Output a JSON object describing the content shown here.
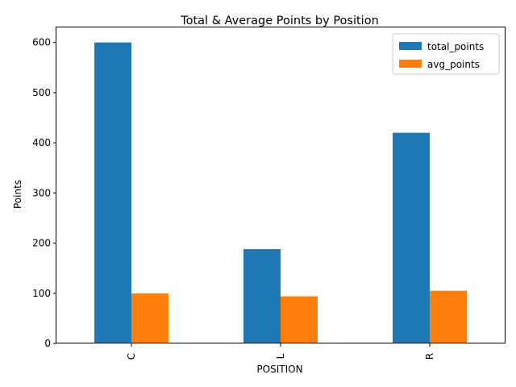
{
  "chart_data": {
    "type": "bar",
    "title": "Total & Average Points by Position",
    "xlabel": "POSITION",
    "ylabel": "Points",
    "categories": [
      "C",
      "L",
      "R"
    ],
    "series": [
      {
        "name": "total_points",
        "values": [
          600,
          188,
          420
        ],
        "color": "#1f77b4"
      },
      {
        "name": "avg_points",
        "values": [
          100,
          94,
          105
        ],
        "color": "#ff7f0e"
      }
    ],
    "ylim": [
      0,
      630
    ],
    "yticks": [
      0,
      100,
      200,
      300,
      400,
      500,
      600
    ],
    "grid": false,
    "legend_position": "top-right"
  }
}
